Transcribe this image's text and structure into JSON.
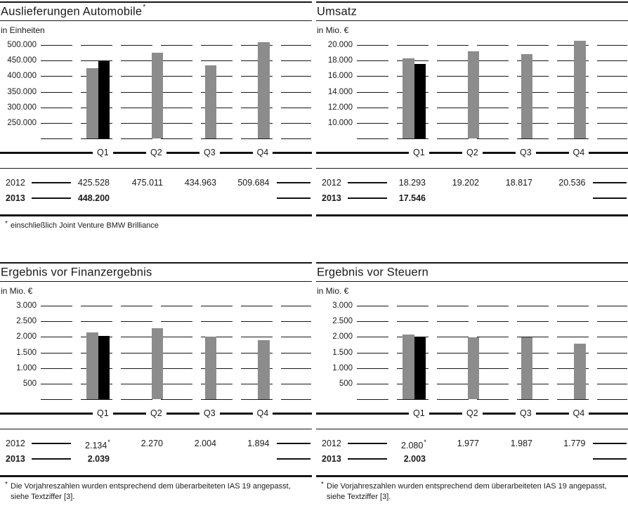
{
  "colors": {
    "bar_2012": "#8c8c8c",
    "bar_2013": "#000000",
    "line": "#161616",
    "text": "#1a1a1a",
    "background": "#ffffff"
  },
  "chart_data": [
    {
      "id": "auslieferungen-automobile",
      "type": "bar",
      "title": "Auslieferungen Automobile",
      "title_sup": "*",
      "unit": "in Einheiten",
      "categories": [
        "Q1",
        "Q2",
        "Q3",
        "Q4"
      ],
      "series": [
        {
          "name": "2012",
          "color": "#8c8c8c",
          "values": [
            425528,
            475011,
            434963,
            509684
          ]
        },
        {
          "name": "2013",
          "color": "#000000",
          "values": [
            448200,
            null,
            null,
            null
          ]
        }
      ],
      "ylim": [
        200000,
        500000
      ],
      "ytick_labels": [
        "500.000",
        "450.000",
        "400.000",
        "350.000",
        "300.000",
        "250.000",
        ""
      ],
      "grid": "dashed-horizontal",
      "legend": "none",
      "table": {
        "rows": [
          {
            "year": "2012",
            "bold": false,
            "values": [
              "425.528",
              "475.011",
              "434.963",
              "509.684"
            ],
            "sups": [
              "",
              "",
              "",
              ""
            ]
          },
          {
            "year": "2013",
            "bold": true,
            "values": [
              "448.200",
              "",
              "",
              ""
            ],
            "sups": [
              "",
              "",
              "",
              ""
            ]
          }
        ]
      },
      "footnote_sup": "*",
      "footnote_lines": [
        "einschließlich Joint Venture BMW Brilliance"
      ]
    },
    {
      "id": "umsatz",
      "type": "bar",
      "title": "Umsatz",
      "title_sup": "",
      "unit": "in Mio. €",
      "categories": [
        "Q1",
        "Q2",
        "Q3",
        "Q4"
      ],
      "series": [
        {
          "name": "2012",
          "color": "#8c8c8c",
          "values": [
            18293,
            19202,
            18817,
            20536
          ]
        },
        {
          "name": "2013",
          "color": "#000000",
          "values": [
            17546,
            null,
            null,
            null
          ]
        }
      ],
      "ylim": [
        8000,
        20000
      ],
      "ytick_labels": [
        "20.000",
        "18.000",
        "16.000",
        "14.000",
        "12.000",
        "10.000",
        ""
      ],
      "grid": "dashed-horizontal",
      "legend": "none",
      "table": {
        "rows": [
          {
            "year": "2012",
            "bold": false,
            "values": [
              "18.293",
              "19.202",
              "18.817",
              "20.536"
            ],
            "sups": [
              "",
              "",
              "",
              ""
            ]
          },
          {
            "year": "2013",
            "bold": true,
            "values": [
              "17.546",
              "",
              "",
              ""
            ],
            "sups": [
              "",
              "",
              "",
              ""
            ]
          }
        ]
      },
      "footnote_sup": "",
      "footnote_lines": []
    },
    {
      "id": "ergebnis-vor-finanzergebnis",
      "type": "bar",
      "title": "Ergebnis vor Finanzergebnis",
      "title_sup": "",
      "unit": "in Mio. €",
      "categories": [
        "Q1",
        "Q2",
        "Q3",
        "Q4"
      ],
      "series": [
        {
          "name": "2012",
          "color": "#8c8c8c",
          "values": [
            2134,
            2270,
            2004,
            1894
          ]
        },
        {
          "name": "2013",
          "color": "#000000",
          "values": [
            2039,
            null,
            null,
            null
          ]
        }
      ],
      "ylim": [
        0,
        3000
      ],
      "ytick_labels": [
        "3.000",
        "2.500",
        "2.000",
        "1.500",
        "1.000",
        "500",
        ""
      ],
      "grid": "dashed-horizontal",
      "legend": "none",
      "table": {
        "rows": [
          {
            "year": "2012",
            "bold": false,
            "values": [
              "2.134",
              "2.270",
              "2.004",
              "1.894"
            ],
            "sups": [
              "*",
              "",
              "",
              ""
            ]
          },
          {
            "year": "2013",
            "bold": true,
            "values": [
              "2.039",
              "",
              "",
              ""
            ],
            "sups": [
              "",
              "",
              "",
              ""
            ]
          }
        ]
      },
      "footnote_sup": "*",
      "footnote_lines": [
        "Die Vorjahreszahlen wurden entsprechend dem überarbeiteten IAS 19 angepasst,",
        "siehe Textziffer [3]."
      ]
    },
    {
      "id": "ergebnis-vor-steuern",
      "type": "bar",
      "title": "Ergebnis vor Steuern",
      "title_sup": "",
      "unit": "in Mio. €",
      "categories": [
        "Q1",
        "Q2",
        "Q3",
        "Q4"
      ],
      "series": [
        {
          "name": "2012",
          "color": "#8c8c8c",
          "values": [
            2080,
            1977,
            1987,
            1779
          ]
        },
        {
          "name": "2013",
          "color": "#000000",
          "values": [
            2003,
            null,
            null,
            null
          ]
        }
      ],
      "ylim": [
        0,
        3000
      ],
      "ytick_labels": [
        "3.000",
        "2.500",
        "2.000",
        "1.500",
        "1.000",
        "500",
        ""
      ],
      "grid": "dashed-horizontal",
      "legend": "none",
      "table": {
        "rows": [
          {
            "year": "2012",
            "bold": false,
            "values": [
              "2.080",
              "1.977",
              "1.987",
              "1.779"
            ],
            "sups": [
              "*",
              "",
              "",
              ""
            ]
          },
          {
            "year": "2013",
            "bold": true,
            "values": [
              "2.003",
              "",
              "",
              ""
            ],
            "sups": [
              "",
              "",
              "",
              ""
            ]
          }
        ]
      },
      "footnote_sup": "*",
      "footnote_lines": [
        "Die Vorjahreszahlen wurden entsprechend dem überarbeiteten IAS 19 angepasst,",
        "siehe Textziffer [3]."
      ]
    }
  ]
}
